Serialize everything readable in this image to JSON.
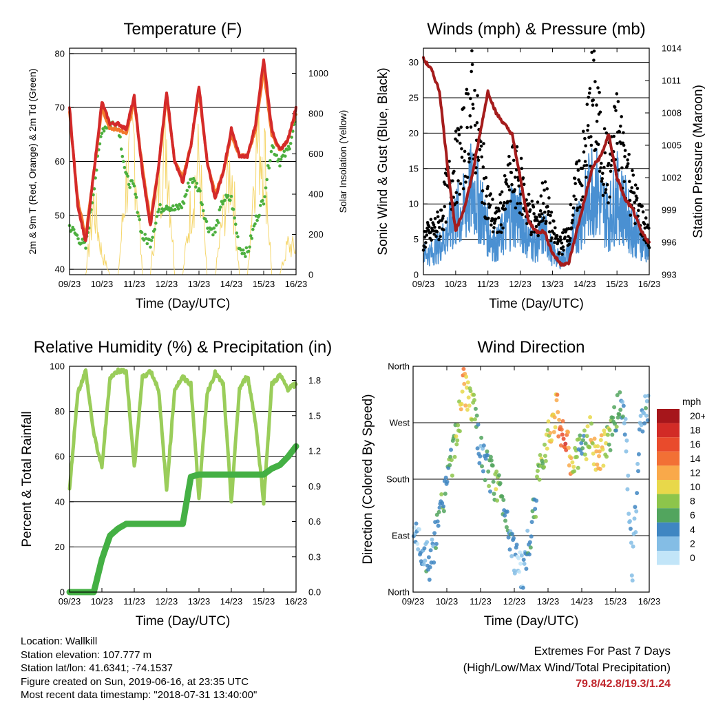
{
  "colors": {
    "temp_2m": "#d42a2a",
    "temp_9m": "#f2782b",
    "dewpoint": "#4caf3e",
    "solar": "#f5d66b",
    "wind_sustained": "#4a90d2",
    "wind_gust": "#000000",
    "pressure": "#a51c1c",
    "rh": "#9acd5a",
    "precip": "#44b044",
    "extremes": "#c0272d"
  },
  "x_ticks": [
    "09/23",
    "10/23",
    "11/23",
    "12/23",
    "13/23",
    "14/23",
    "15/23",
    "16/23"
  ],
  "x_label": "Time (Day/UTC)",
  "chart_data": [
    {
      "type": "line",
      "title": "Temperature (F)",
      "xlabel": "Time (Day/UTC)",
      "ylabel": "2m & 9m T (Red, Orange) & 2m Td (Green)",
      "y2label": "Solar Insolation (Yellow)",
      "ylim": [
        39,
        81
      ],
      "yticks": [
        40,
        50,
        60,
        70,
        80
      ],
      "y2lim": [
        0,
        1125
      ],
      "y2ticks": [
        0,
        200,
        400,
        600,
        800,
        1000
      ],
      "grid": true,
      "x_hours": [
        0,
        6,
        12,
        18,
        24,
        30,
        36,
        42,
        48,
        54,
        60,
        66,
        72,
        78,
        84,
        90,
        96,
        102,
        108,
        114,
        120,
        126,
        132,
        138,
        144,
        150,
        156,
        162,
        168
      ],
      "series": [
        {
          "values": [
            70,
            52,
            45,
            58,
            71,
            67,
            67,
            66,
            72,
            58,
            48,
            59,
            73,
            60,
            56,
            63,
            74,
            60,
            53,
            58,
            66,
            61,
            61,
            67,
            79,
            66,
            62,
            64,
            70
          ]
        },
        {
          "values": [
            69,
            53,
            46,
            58,
            70,
            66,
            66,
            65,
            71,
            59,
            49,
            59,
            72,
            60,
            57,
            63,
            73,
            60,
            54,
            58,
            65,
            61,
            61,
            66,
            77,
            65,
            62,
            64,
            69
          ]
        },
        {
          "values": [
            48,
            46,
            44,
            55,
            66,
            67,
            67,
            57,
            55,
            46,
            45,
            51,
            52,
            51,
            52,
            57,
            55,
            48,
            47,
            53,
            53,
            44,
            43,
            49,
            53,
            63,
            60,
            62,
            68
          ]
        },
        {
          "values": [
            0,
            0,
            0,
            520,
            150,
            0,
            0,
            680,
            980,
            0,
            0,
            640,
            1000,
            0,
            0,
            500,
            830,
            0,
            0,
            430,
            790,
            0,
            0,
            920,
            980,
            0,
            0,
            220,
            180
          ]
        }
      ]
    },
    {
      "type": "scatter",
      "title": "Winds (mph) & Pressure (mb)",
      "xlabel": "Time (Day/UTC)",
      "ylabel": "Sonic Wind & Gust (Blue, Black)",
      "y2label": "Station Pressure (Maroon)",
      "ylim": [
        0,
        32
      ],
      "yticks": [
        0,
        5,
        10,
        15,
        20,
        25,
        30
      ],
      "y2lim": [
        993,
        1014
      ],
      "y2ticks": [
        993,
        996,
        999,
        1002,
        1005,
        1008,
        1011,
        1014
      ],
      "grid": true,
      "x_hours": [
        0,
        6,
        12,
        18,
        24,
        30,
        36,
        42,
        48,
        54,
        60,
        66,
        72,
        78,
        84,
        90,
        96,
        102,
        108,
        114,
        120,
        126,
        132,
        138,
        144,
        150,
        156,
        162,
        168
      ],
      "series": [
        {
          "values": [
            3,
            3,
            4,
            6,
            8,
            9,
            12,
            10,
            6,
            4,
            6,
            9,
            8,
            5,
            4,
            6,
            3,
            2,
            3,
            7,
            9,
            13,
            10,
            8,
            11,
            9,
            6,
            5,
            3
          ]
        },
        {
          "values": [
            5,
            6,
            7,
            12,
            15,
            18,
            24,
            17,
            10,
            7,
            10,
            14,
            13,
            9,
            7,
            11,
            6,
            4,
            6,
            12,
            16,
            25,
            18,
            14,
            20,
            16,
            11,
            8,
            5
          ]
        },
        {
          "values": [
            1013,
            1012,
            1010,
            1003,
            997,
            999,
            1002,
            1006,
            1010,
            1008,
            1007,
            1006,
            1002,
            998,
            997,
            997,
            995,
            994,
            994,
            997,
            1000,
            1003,
            1004,
            1006,
            1002,
            1000,
            999,
            997,
            996
          ]
        }
      ]
    },
    {
      "type": "line",
      "title": "Relative Humidity (%) & Precipitation (in)",
      "xlabel": "Time (Day/UTC)",
      "ylabel": "Percent & Total Rainfall",
      "ylim": [
        0,
        100
      ],
      "yticks": [
        0,
        20,
        40,
        60,
        80,
        100
      ],
      "y2lim": [
        0,
        1.92
      ],
      "y2ticks": [
        "0.0",
        "0.3",
        "0.6",
        "0.9",
        "1.2",
        "1.5",
        "1.8"
      ],
      "grid": true,
      "x_hours": [
        0,
        6,
        12,
        18,
        24,
        30,
        36,
        42,
        48,
        54,
        60,
        66,
        72,
        78,
        84,
        90,
        96,
        102,
        108,
        114,
        120,
        126,
        132,
        138,
        144,
        150,
        156,
        162,
        168
      ],
      "series": [
        {
          "values": [
            45,
            88,
            98,
            70,
            55,
            95,
            98,
            98,
            55,
            95,
            98,
            90,
            45,
            90,
            95,
            92,
            42,
            88,
            97,
            92,
            40,
            90,
            96,
            75,
            40,
            92,
            96,
            90,
            92
          ]
        },
        {
          "values": [
            0,
            0,
            0,
            0,
            0.28,
            0.48,
            0.54,
            0.58,
            0.58,
            0.58,
            0.58,
            0.58,
            0.58,
            0.58,
            0.58,
            0.98,
            1.0,
            1.0,
            1.0,
            1.0,
            1.0,
            1.0,
            1.0,
            1.0,
            1.0,
            1.05,
            1.08,
            1.15,
            1.24
          ]
        }
      ]
    },
    {
      "type": "scatter",
      "title": "Wind Direction",
      "xlabel": "Time (Day/UTC)",
      "ylabel": "Direction (Colored By Speed)",
      "ylim": [
        0,
        360
      ],
      "yticks": [
        "North",
        "East",
        "South",
        "West",
        "North"
      ],
      "colorbar": {
        "unit": "mph",
        "labels": [
          "20+",
          "18",
          "16",
          "14",
          "12",
          "10",
          "8",
          "6",
          "4",
          "2",
          "0"
        ],
        "colors": [
          "#a6161b",
          "#d22b26",
          "#e94b2c",
          "#f27035",
          "#f9a94a",
          "#e8d84a",
          "#8dc54b",
          "#52a55e",
          "#3f86c2",
          "#84bde5",
          "#c2e5f8"
        ]
      },
      "x_hours": [
        0,
        6,
        12,
        18,
        24,
        30,
        36,
        42,
        48,
        54,
        60,
        66,
        72,
        78,
        84,
        90,
        96,
        102,
        108,
        114,
        120,
        126,
        132,
        138,
        144,
        150,
        156,
        162,
        168
      ],
      "values": [
        110,
        70,
        40,
        110,
        180,
        235,
        330,
        300,
        220,
        190,
        170,
        130,
        60,
        30,
        100,
        190,
        255,
        290,
        240,
        200,
        230,
        250,
        210,
        240,
        280,
        310,
        30,
        270,
        300
      ],
      "speeds": [
        2,
        3,
        4,
        6,
        5,
        7,
        12,
        8,
        4,
        6,
        8,
        5,
        3,
        2,
        4,
        7,
        9,
        12,
        16,
        9,
        5,
        10,
        12,
        8,
        6,
        4,
        3,
        4,
        3
      ]
    }
  ],
  "footer": {
    "location": "Location: Wallkill",
    "elevation": "Station elevation: 107.777 m",
    "latlon": "Station lat/lon: 41.6341; -74.1537",
    "created": "Figure created on Sun, 2019-06-16, at 23:35 UTC",
    "recent": "Most recent data timestamp: \"2018-07-31 13:40:00\"",
    "extremes_title": "Extremes For Past 7 Days",
    "extremes_subtitle": "(High/Low/Max Wind/Total Precipitation)",
    "extremes_values": "79.8/42.8/19.3/1.24"
  }
}
